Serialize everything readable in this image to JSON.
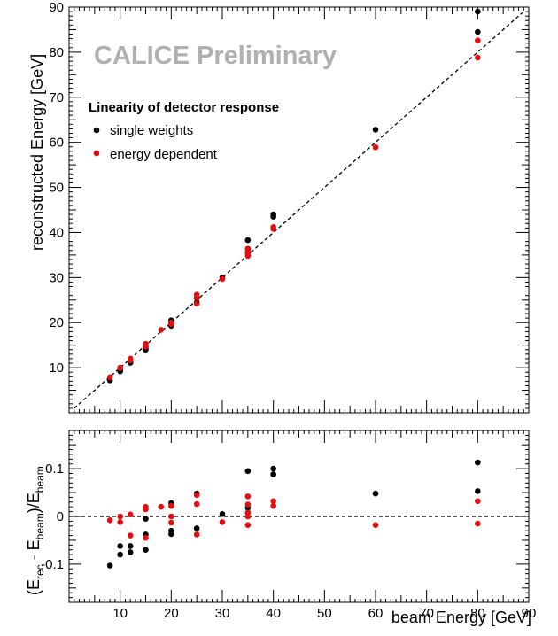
{
  "chart_data": [
    {
      "type": "scatter",
      "title": "Linearity of detector response",
      "annotation": "CALICE Preliminary",
      "xlabel": "",
      "ylabel": "reconstructed Energy [GeV]",
      "xlim": [
        0,
        90
      ],
      "ylim": [
        0,
        90
      ],
      "yticks": [
        10,
        20,
        30,
        40,
        50,
        60,
        70,
        80,
        90
      ],
      "reference_line": "y = x",
      "legend_position": "upper-left",
      "series": [
        {
          "name": "single weights",
          "color": "#000000",
          "points": [
            [
              8,
              7.2
            ],
            [
              10,
              9.2
            ],
            [
              10,
              9.4
            ],
            [
              12,
              11.1
            ],
            [
              12,
              11.2
            ],
            [
              15,
              14.0
            ],
            [
              15,
              14.5
            ],
            [
              20,
              19.3
            ],
            [
              20,
              19.5
            ],
            [
              20,
              20.5
            ],
            [
              25,
              24.5
            ],
            [
              25,
              25.5
            ],
            [
              30,
              30.0
            ],
            [
              35,
              35.5
            ],
            [
              35,
              38.3
            ],
            [
              40,
              43.5
            ],
            [
              40,
              44.0
            ],
            [
              60,
              62.8
            ],
            [
              80,
              84.5
            ],
            [
              80,
              89.0
            ]
          ]
        },
        {
          "name": "energy dependent",
          "color": "#e01010",
          "points": [
            [
              8,
              7.9
            ],
            [
              10,
              9.9
            ],
            [
              10,
              10.0
            ],
            [
              12,
              11.6
            ],
            [
              12,
              12.0
            ],
            [
              15,
              14.7
            ],
            [
              15,
              15.3
            ],
            [
              18,
              18.4
            ],
            [
              20,
              19.7
            ],
            [
              20,
              20.0
            ],
            [
              25,
              24.2
            ],
            [
              25,
              25.6
            ],
            [
              25,
              26.2
            ],
            [
              30,
              29.7
            ],
            [
              35,
              34.8
            ],
            [
              35,
              35.4
            ],
            [
              35,
              36.0
            ],
            [
              35,
              36.4
            ],
            [
              40,
              40.8
            ],
            [
              40,
              41.2
            ],
            [
              60,
              58.9
            ],
            [
              80,
              78.8
            ],
            [
              80,
              82.6
            ]
          ]
        }
      ]
    },
    {
      "type": "scatter",
      "xlabel": "beam Energy [GeV]",
      "ylabel": "(E_rec - E_beam)/E_beam",
      "ylabel_parts": {
        "open": "(E",
        "rec": "rec",
        "mid": " - E",
        "beam": "beam",
        "close": ")/E"
      },
      "xlim": [
        0,
        90
      ],
      "ylim": [
        -0.18,
        0.18
      ],
      "xticks": [
        10,
        20,
        30,
        40,
        50,
        60,
        70,
        80,
        90
      ],
      "yticks": [
        -0.1,
        0,
        0.1
      ],
      "ytick_labels": [
        "-0.1",
        "0",
        "0.1"
      ],
      "reference_line": "y = 0",
      "series": [
        {
          "name": "single weights",
          "color": "#000000",
          "points": [
            [
              8,
              -0.103
            ],
            [
              10,
              -0.08
            ],
            [
              10,
              -0.062
            ],
            [
              12,
              -0.075
            ],
            [
              12,
              -0.062
            ],
            [
              15,
              -0.07
            ],
            [
              15,
              -0.038
            ],
            [
              15,
              -0.005
            ],
            [
              20,
              -0.037
            ],
            [
              20,
              -0.03
            ],
            [
              20,
              0.028
            ],
            [
              25,
              -0.025
            ],
            [
              25,
              0.048
            ],
            [
              30,
              0.005
            ],
            [
              35,
              0.095
            ],
            [
              35,
              0.018
            ],
            [
              40,
              0.088
            ],
            [
              40,
              0.1
            ],
            [
              60,
              0.048
            ],
            [
              80,
              0.053
            ],
            [
              80,
              0.113
            ]
          ]
        },
        {
          "name": "energy dependent",
          "color": "#e01010",
          "points": [
            [
              8,
              -0.008
            ],
            [
              10,
              -0.012
            ],
            [
              10,
              0.0
            ],
            [
              12,
              -0.04
            ],
            [
              12,
              0.004
            ],
            [
              15,
              -0.045
            ],
            [
              15,
              0.015
            ],
            [
              15,
              0.02
            ],
            [
              18,
              0.02
            ],
            [
              20,
              -0.013
            ],
            [
              20,
              0.0
            ],
            [
              20,
              0.022
            ],
            [
              25,
              -0.038
            ],
            [
              25,
              0.026
            ],
            [
              25,
              0.045
            ],
            [
              30,
              -0.012
            ],
            [
              35,
              -0.018
            ],
            [
              35,
              0.0
            ],
            [
              35,
              0.008
            ],
            [
              35,
              0.025
            ],
            [
              35,
              0.042
            ],
            [
              40,
              0.022
            ],
            [
              40,
              0.032
            ],
            [
              60,
              -0.018
            ],
            [
              80,
              -0.015
            ],
            [
              80,
              0.032
            ]
          ]
        }
      ]
    }
  ]
}
